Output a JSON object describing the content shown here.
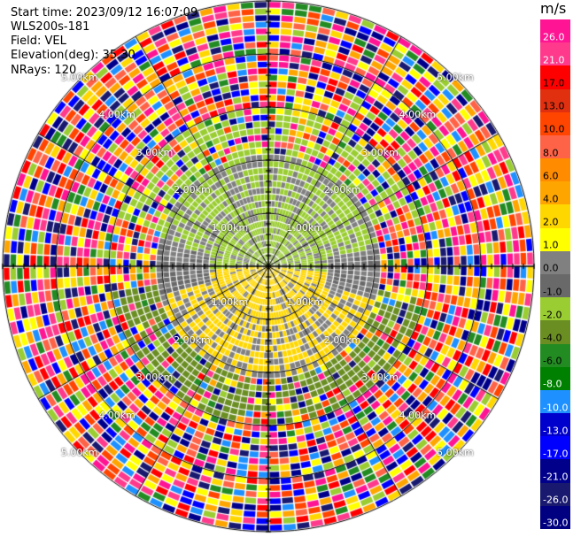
{
  "info": {
    "start_time": "Start time: 2023/09/12 16:07:09",
    "device": "WLS200s-181",
    "field": "Field: VEL",
    "elevation": "Elevation(deg): 35.30",
    "nrays": "NRays: 120"
  },
  "colorbar": {
    "unit": "m/s",
    "levels": [
      "26.0",
      "21.0",
      "17.0",
      "13.0",
      "10.0",
      "8.0",
      "6.0",
      "4.0",
      "2.0",
      "1.0",
      "0.0",
      "-1.0",
      "-2.0",
      "-4.0",
      "-6.0",
      "-8.0",
      "-10.0",
      "-13.0",
      "-17.0",
      "-21.0",
      "-26.0",
      "-30.0"
    ],
    "colors": [
      "#ff1493",
      "#ff3a8c",
      "#ff0000",
      "#e03010",
      "#ff4500",
      "#ff6347",
      "#ff8c00",
      "#ffa500",
      "#ffd700",
      "#ffff00",
      "#808080",
      "#696969",
      "#9acd32",
      "#6b8e23",
      "#228b22",
      "#008000",
      "#1e90ff",
      "#0000cd",
      "#0000ff",
      "#00008b",
      "#191970",
      "#000080"
    ]
  },
  "ring_labels": [
    "1.00km",
    "2.00km",
    "3.00km",
    "4.00km",
    "5.00km"
  ],
  "icon": "radar-ppi-plot"
}
